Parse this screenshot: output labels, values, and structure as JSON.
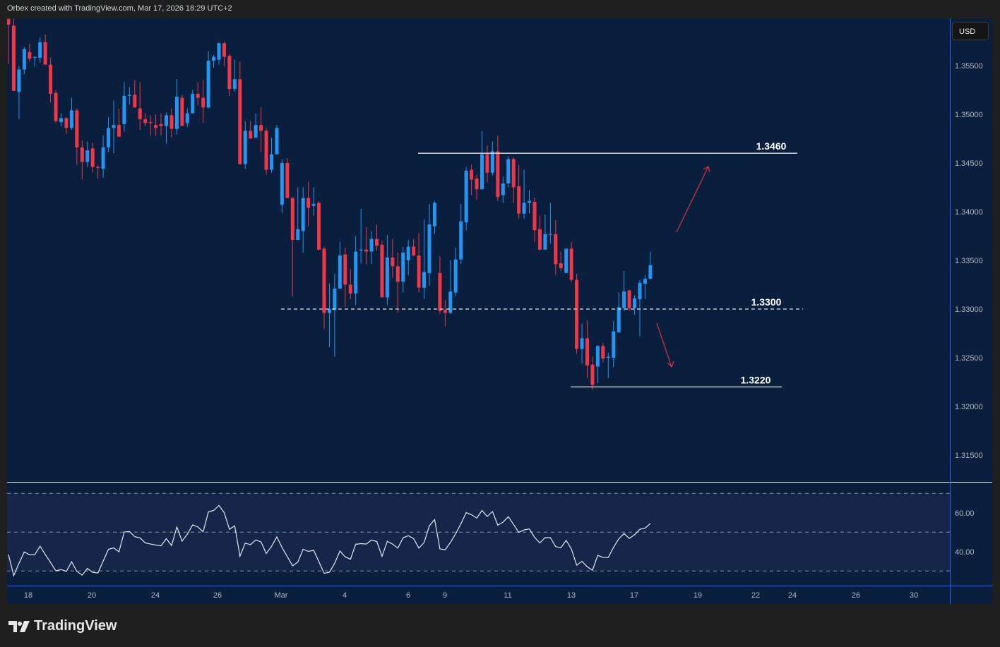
{
  "header": {
    "caption": "Orbex created with TradingView.com, Mar 17, 2026 18:29 UTC+2"
  },
  "currency_button": "USD",
  "brand": {
    "name": "TradingView"
  },
  "colors": {
    "up": "#2196f3",
    "down": "#f23645",
    "background": "#0a1f3d",
    "rsi_band": "#16264a",
    "axis_line": "#2962ff",
    "annotation_arrow": "#e0303f"
  },
  "chart_data": [
    {
      "type": "candlestick",
      "price_axis": {
        "ticks": [
          "1.35500",
          "1.35000",
          "1.34500",
          "1.34000",
          "1.33500",
          "1.33000",
          "1.32500",
          "1.32000",
          "1.31500"
        ],
        "ylim": [
          1.3115,
          1.359
        ]
      },
      "time_axis": {
        "ticks": [
          "18",
          "20",
          "24",
          "26",
          "Mar",
          "4",
          "6",
          "9",
          "11",
          "13",
          "17",
          "19",
          "22",
          "24",
          "26",
          "30"
        ]
      },
      "ohlc_fields": [
        "open",
        "high",
        "low",
        "close"
      ],
      "candles": [
        [
          1.3598,
          1.3599,
          1.3552,
          1.3592
        ],
        [
          1.3591,
          1.3598,
          1.3524,
          1.3524
        ],
        [
          1.3523,
          1.355,
          1.3495,
          1.3546
        ],
        [
          1.3546,
          1.3569,
          1.3541,
          1.3567
        ],
        [
          1.3564,
          1.3572,
          1.3554,
          1.3557
        ],
        [
          1.3558,
          1.3559,
          1.3549,
          1.3559
        ],
        [
          1.3558,
          1.3579,
          1.3553,
          1.3574
        ],
        [
          1.3574,
          1.3582,
          1.3551,
          1.3551
        ],
        [
          1.3551,
          1.3558,
          1.3512,
          1.3521
        ],
        [
          1.3522,
          1.3525,
          1.3491,
          1.3493
        ],
        [
          1.3492,
          1.3501,
          1.3488,
          1.3496
        ],
        [
          1.3496,
          1.3497,
          1.348,
          1.3486
        ],
        [
          1.3486,
          1.3517,
          1.3484,
          1.3504
        ],
        [
          1.3504,
          1.3506,
          1.3448,
          1.3466
        ],
        [
          1.3466,
          1.3473,
          1.3433,
          1.3451
        ],
        [
          1.3451,
          1.3472,
          1.3446,
          1.3463
        ],
        [
          1.3465,
          1.3471,
          1.344,
          1.3446
        ],
        [
          1.3446,
          1.3448,
          1.3434,
          1.3445
        ],
        [
          1.3444,
          1.3478,
          1.3435,
          1.3466
        ],
        [
          1.3466,
          1.3497,
          1.3461,
          1.3486
        ],
        [
          1.3486,
          1.3514,
          1.346,
          1.3489
        ],
        [
          1.3489,
          1.3506,
          1.3477,
          1.3477
        ],
        [
          1.349,
          1.3533,
          1.3482,
          1.3519
        ],
        [
          1.3519,
          1.3528,
          1.351,
          1.352
        ],
        [
          1.352,
          1.3535,
          1.3507,
          1.3507
        ],
        [
          1.3506,
          1.3533,
          1.3484,
          1.3495
        ],
        [
          1.3495,
          1.3501,
          1.3488,
          1.3491
        ],
        [
          1.3492,
          1.3499,
          1.3478,
          1.3491
        ],
        [
          1.3489,
          1.35,
          1.3478,
          1.3486
        ],
        [
          1.349,
          1.3501,
          1.3478,
          1.3488
        ],
        [
          1.3488,
          1.3502,
          1.347,
          1.3499
        ],
        [
          1.3499,
          1.3506,
          1.3476,
          1.3485
        ],
        [
          1.3485,
          1.3536,
          1.3479,
          1.3518
        ],
        [
          1.3517,
          1.352,
          1.3488,
          1.3488
        ],
        [
          1.3491,
          1.3506,
          1.3487,
          1.3501
        ],
        [
          1.3501,
          1.3525,
          1.3501,
          1.3521
        ],
        [
          1.3521,
          1.3533,
          1.3509,
          1.3517
        ],
        [
          1.3517,
          1.3535,
          1.3491,
          1.3507
        ],
        [
          1.3507,
          1.3565,
          1.3506,
          1.3555
        ],
        [
          1.3555,
          1.3561,
          1.3548,
          1.3559
        ],
        [
          1.3556,
          1.3574,
          1.3551,
          1.3573
        ],
        [
          1.3573,
          1.3575,
          1.3549,
          1.3559
        ],
        [
          1.356,
          1.3562,
          1.3519,
          1.3526
        ],
        [
          1.3526,
          1.3556,
          1.3523,
          1.3536
        ],
        [
          1.3536,
          1.3554,
          1.3448,
          1.3449
        ],
        [
          1.3449,
          1.3493,
          1.3444,
          1.3483
        ],
        [
          1.3483,
          1.3493,
          1.3475,
          1.3475
        ],
        [
          1.3476,
          1.3501,
          1.3476,
          1.3489
        ],
        [
          1.3489,
          1.3507,
          1.3461,
          1.3483
        ],
        [
          1.3483,
          1.3486,
          1.3438,
          1.3443
        ],
        [
          1.3443,
          1.3476,
          1.344,
          1.3459
        ],
        [
          1.3459,
          1.3489,
          1.3459,
          1.3486
        ],
        [
          1.3407,
          1.3454,
          1.3399,
          1.345
        ],
        [
          1.345,
          1.3455,
          1.3414,
          1.3414
        ],
        [
          1.3414,
          1.3415,
          1.3313,
          1.3371
        ],
        [
          1.3371,
          1.3425,
          1.3371,
          1.3382
        ],
        [
          1.338,
          1.3425,
          1.3358,
          1.3414
        ],
        [
          1.3414,
          1.3431,
          1.3385,
          1.3404
        ],
        [
          1.3406,
          1.3425,
          1.3396,
          1.3408
        ],
        [
          1.3409,
          1.3411,
          1.336,
          1.3361
        ],
        [
          1.3362,
          1.3364,
          1.328,
          1.3296
        ],
        [
          1.3296,
          1.3326,
          1.3261,
          1.33
        ],
        [
          1.3299,
          1.3336,
          1.3251,
          1.3321
        ],
        [
          1.3321,
          1.3369,
          1.3321,
          1.3355
        ],
        [
          1.3356,
          1.3363,
          1.3302,
          1.3325
        ],
        [
          1.3325,
          1.3341,
          1.331,
          1.3316
        ],
        [
          1.3316,
          1.3375,
          1.3304,
          1.3359
        ],
        [
          1.336,
          1.3403,
          1.3347,
          1.3361
        ],
        [
          1.3361,
          1.3384,
          1.3346,
          1.3359
        ],
        [
          1.3359,
          1.338,
          1.3346,
          1.3372
        ],
        [
          1.3372,
          1.3387,
          1.336,
          1.3365
        ],
        [
          1.3366,
          1.337,
          1.3312,
          1.3312
        ],
        [
          1.3312,
          1.3376,
          1.3304,
          1.3353
        ],
        [
          1.3353,
          1.3372,
          1.3332,
          1.3344
        ],
        [
          1.3344,
          1.3358,
          1.3296,
          1.3328
        ],
        [
          1.3328,
          1.3364,
          1.3317,
          1.3358
        ],
        [
          1.335,
          1.3371,
          1.3335,
          1.3364
        ],
        [
          1.3364,
          1.3372,
          1.3354,
          1.3355
        ],
        [
          1.3355,
          1.3378,
          1.3317,
          1.3322
        ],
        [
          1.3322,
          1.3392,
          1.331,
          1.3338
        ],
        [
          1.3337,
          1.3408,
          1.3324,
          1.3387
        ],
        [
          1.3385,
          1.3411,
          1.3377,
          1.3409
        ],
        [
          1.3337,
          1.3354,
          1.3295,
          1.3298
        ],
        [
          1.3299,
          1.3309,
          1.3282,
          1.3296
        ],
        [
          1.3296,
          1.335,
          1.3295,
          1.3318
        ],
        [
          1.3317,
          1.3363,
          1.3313,
          1.3351
        ],
        [
          1.3351,
          1.3408,
          1.3346,
          1.339
        ],
        [
          1.3389,
          1.3446,
          1.3381,
          1.3442
        ],
        [
          1.3443,
          1.3448,
          1.3417,
          1.3433
        ],
        [
          1.3434,
          1.3438,
          1.3412,
          1.3423
        ],
        [
          1.3423,
          1.3483,
          1.3423,
          1.3459
        ],
        [
          1.3459,
          1.3468,
          1.343,
          1.344
        ],
        [
          1.344,
          1.3472,
          1.3437,
          1.3462
        ],
        [
          1.3462,
          1.3478,
          1.3411,
          1.3415
        ],
        [
          1.3417,
          1.3436,
          1.3409,
          1.3429
        ],
        [
          1.3429,
          1.3457,
          1.3425,
          1.3454
        ],
        [
          1.3454,
          1.3456,
          1.3409,
          1.3425
        ],
        [
          1.3426,
          1.3448,
          1.3393,
          1.3398
        ],
        [
          1.3398,
          1.3443,
          1.3393,
          1.3409
        ],
        [
          1.3409,
          1.3422,
          1.3398,
          1.3411
        ],
        [
          1.341,
          1.3414,
          1.3369,
          1.3381
        ],
        [
          1.3382,
          1.3396,
          1.336,
          1.3361
        ],
        [
          1.3361,
          1.3397,
          1.3361,
          1.3377
        ],
        [
          1.3377,
          1.3409,
          1.3367,
          1.3377
        ],
        [
          1.3377,
          1.3391,
          1.3335,
          1.3346
        ],
        [
          1.3347,
          1.3359,
          1.3339,
          1.3342
        ],
        [
          1.3337,
          1.3362,
          1.3337,
          1.3362
        ],
        [
          1.3362,
          1.3369,
          1.3328,
          1.333
        ],
        [
          1.333,
          1.3336,
          1.3254,
          1.3259
        ],
        [
          1.3259,
          1.3285,
          1.3244,
          1.327
        ],
        [
          1.327,
          1.3288,
          1.3229,
          1.3242
        ],
        [
          1.3243,
          1.3251,
          1.3217,
          1.3222
        ],
        [
          1.3241,
          1.3263,
          1.3224,
          1.3262
        ],
        [
          1.3262,
          1.3265,
          1.3245,
          1.3249
        ],
        [
          1.325,
          1.3255,
          1.3229,
          1.3251
        ],
        [
          1.325,
          1.3288,
          1.324,
          1.3277
        ],
        [
          1.3276,
          1.3317,
          1.3276,
          1.3302
        ],
        [
          1.3301,
          1.3339,
          1.3298,
          1.3318
        ],
        [
          1.3319,
          1.332,
          1.3298,
          1.3301
        ],
        [
          1.3301,
          1.3314,
          1.3294,
          1.3311
        ],
        [
          1.331,
          1.333,
          1.3272,
          1.3327
        ],
        [
          1.3326,
          1.3335,
          1.331,
          1.3331
        ],
        [
          1.3331,
          1.3359,
          1.3331,
          1.3345
        ]
      ],
      "levels": [
        {
          "label": "1.3460",
          "price": 1.346,
          "style": "solid"
        },
        {
          "label": "1.3300",
          "price": 1.33,
          "style": "dashed"
        },
        {
          "label": "1.3220",
          "price": 1.322,
          "style": "solid"
        }
      ],
      "arrows": [
        {
          "direction": "up"
        },
        {
          "direction": "down"
        }
      ]
    },
    {
      "type": "line",
      "indicator_ticks": [
        "60.00",
        "40.00"
      ],
      "bands": [
        70,
        50,
        30
      ],
      "values": [
        38.5,
        27.6,
        34.0,
        39.8,
        38.4,
        38.4,
        42.8,
        38.5,
        34.4,
        30.1,
        30.8,
        29.8,
        34.8,
        29.8,
        27.9,
        31.3,
        29.3,
        29.0,
        35.1,
        41.2,
        41.9,
        39.9,
        50.1,
        50.4,
        47.7,
        47.1,
        44.5,
        43.9,
        43.4,
        43.0,
        46.7,
        43.1,
        52.7,
        45.4,
        49.0,
        53.8,
        52.7,
        50.2,
        60.5,
        61.2,
        63.8,
        60.1,
        51.5,
        53.3,
        37.6,
        44.4,
        43.6,
        46.0,
        45.0,
        39.0,
        42.7,
        47.6,
        42.1,
        37.4,
        32.7,
        34.6,
        41.2,
        40.1,
        40.7,
        34.8,
        28.8,
        29.4,
        34.0,
        40.3,
        37.3,
        36.1,
        43.8,
        44.1,
        43.9,
        46.0,
        45.2,
        37.6,
        45.3,
        43.9,
        41.8,
        47.1,
        48.2,
        46.7,
        41.8,
        44.7,
        53.3,
        56.5,
        41.4,
        41.0,
        44.7,
        49.2,
        54.4,
        60.1,
        59.0,
        57.3,
        61.2,
        58.1,
        60.7,
        53.6,
        55.2,
        58.0,
        54.0,
        49.9,
        51.2,
        51.7,
        47.3,
        44.5,
        47.2,
        47.2,
        42.6,
        42.0,
        45.8,
        41.3,
        33.0,
        35.0,
        32.2,
        30.4,
        38.1,
        37.0,
        37.0,
        42.2,
        46.6,
        49.3,
        46.8,
        48.7,
        51.5,
        52.1,
        54.5
      ]
    }
  ]
}
